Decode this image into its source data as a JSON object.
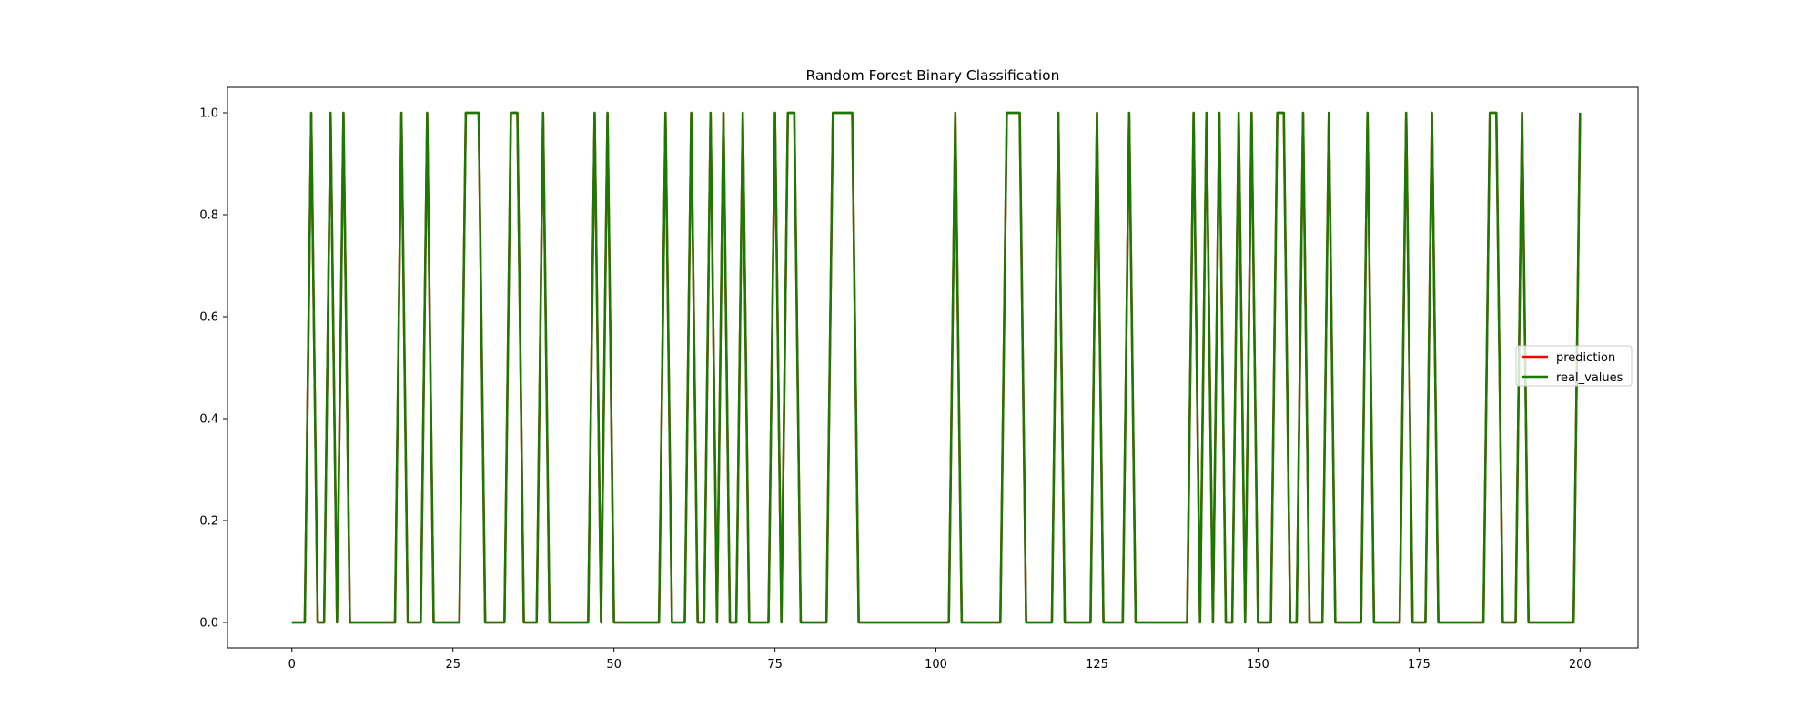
{
  "chart_data": {
    "type": "line",
    "title": "Random Forest Binary Classification",
    "xlabel": "",
    "ylabel": "",
    "xlim": [
      -10,
      209
    ],
    "ylim": [
      -0.05,
      1.05
    ],
    "xticks": [
      0,
      25,
      50,
      75,
      100,
      125,
      150,
      175,
      200
    ],
    "yticks": [
      0.0,
      0.2,
      0.4,
      0.6,
      0.8,
      1.0
    ],
    "xtick_labels": [
      "0",
      "25",
      "50",
      "75",
      "100",
      "125",
      "150",
      "175",
      "200"
    ],
    "ytick_labels": [
      "0.0",
      "0.2",
      "0.4",
      "0.6",
      "0.8",
      "1.0"
    ],
    "grid": false,
    "legend_position": "center-right",
    "series": [
      {
        "name": "prediction",
        "color": "#ff0000",
        "x_start": 0,
        "values": [
          0,
          0,
          0,
          1,
          0,
          0,
          1,
          0,
          1,
          0,
          0,
          0,
          0,
          0,
          0,
          0,
          0,
          1,
          0,
          0,
          0,
          1,
          0,
          0,
          0,
          0,
          0,
          1,
          1,
          1,
          0,
          0,
          0,
          0,
          1,
          1,
          0,
          0,
          0,
          1,
          0,
          0,
          0,
          0,
          0,
          0,
          0,
          1,
          0,
          1,
          0,
          0,
          0,
          0,
          0,
          0,
          0,
          0,
          1,
          0,
          0,
          0,
          1,
          0,
          0,
          1,
          0,
          1,
          0,
          0,
          1,
          0,
          0,
          0,
          0,
          1,
          0,
          1,
          1,
          0,
          0,
          0,
          0,
          0,
          1,
          1,
          1,
          1,
          0,
          0,
          0,
          0,
          0,
          0,
          0,
          0,
          0,
          0,
          0,
          0,
          0,
          0,
          0,
          1,
          0,
          0,
          0,
          0,
          0,
          0,
          0,
          1,
          1,
          1,
          0,
          0,
          0,
          0,
          0,
          1,
          0,
          0,
          0,
          0,
          0,
          1,
          0,
          0,
          0,
          0,
          1,
          0,
          0,
          0,
          0,
          0,
          0,
          0,
          0,
          0,
          1,
          0,
          1,
          0,
          1,
          0,
          0,
          1,
          0,
          1,
          0,
          0,
          0,
          1,
          1,
          0,
          0,
          1,
          0,
          0,
          0,
          1,
          0,
          0,
          0,
          0,
          0,
          1,
          0,
          0,
          0,
          0,
          0,
          1,
          0,
          0,
          0,
          1,
          0,
          0,
          0,
          0,
          0,
          0,
          0,
          0,
          1,
          1,
          0,
          0,
          0,
          1,
          0,
          0,
          0,
          0,
          0,
          0,
          0,
          0,
          1
        ]
      },
      {
        "name": "real_values",
        "color": "#1a7a00",
        "x_start": 0,
        "values": [
          0,
          0,
          0,
          1,
          0,
          0,
          1,
          0,
          1,
          0,
          0,
          0,
          0,
          0,
          0,
          0,
          0,
          1,
          0,
          0,
          0,
          1,
          0,
          0,
          0,
          0,
          0,
          1,
          1,
          1,
          0,
          0,
          0,
          0,
          1,
          1,
          0,
          0,
          0,
          1,
          0,
          0,
          0,
          0,
          0,
          0,
          0,
          1,
          0,
          1,
          0,
          0,
          0,
          0,
          0,
          0,
          0,
          0,
          1,
          0,
          0,
          0,
          1,
          0,
          0,
          1,
          0,
          1,
          0,
          0,
          1,
          0,
          0,
          0,
          0,
          1,
          0,
          1,
          1,
          0,
          0,
          0,
          0,
          0,
          1,
          1,
          1,
          1,
          0,
          0,
          0,
          0,
          0,
          0,
          0,
          0,
          0,
          0,
          0,
          0,
          0,
          0,
          0,
          1,
          0,
          0,
          0,
          0,
          0,
          0,
          0,
          1,
          1,
          1,
          0,
          0,
          0,
          0,
          0,
          1,
          0,
          0,
          0,
          0,
          0,
          1,
          0,
          0,
          0,
          0,
          1,
          0,
          0,
          0,
          0,
          0,
          0,
          0,
          0,
          0,
          1,
          0,
          1,
          0,
          1,
          0,
          0,
          1,
          0,
          1,
          0,
          0,
          0,
          1,
          1,
          0,
          0,
          1,
          0,
          0,
          0,
          1,
          0,
          0,
          0,
          0,
          0,
          1,
          0,
          0,
          0,
          0,
          0,
          1,
          0,
          0,
          0,
          1,
          0,
          0,
          0,
          0,
          0,
          0,
          0,
          0,
          1,
          1,
          0,
          0,
          0,
          1,
          0,
          0,
          0,
          0,
          0,
          0,
          0,
          0,
          1
        ]
      }
    ]
  }
}
